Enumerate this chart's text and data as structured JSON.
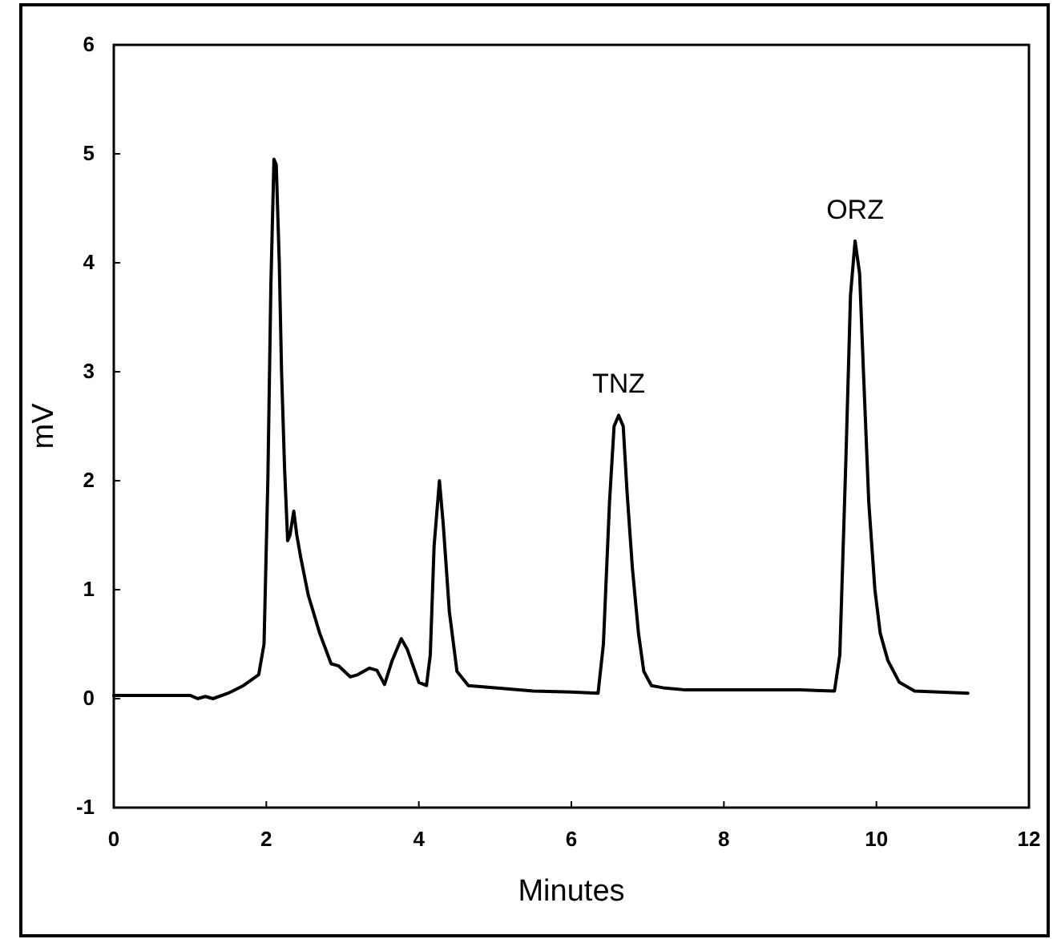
{
  "chart_data": {
    "type": "line",
    "xlabel": "Minutes",
    "ylabel": "mV",
    "xlim": [
      0,
      12
    ],
    "ylim": [
      -1,
      6
    ],
    "xticks": [
      0,
      2,
      4,
      6,
      8,
      10,
      12
    ],
    "yticks": [
      -1,
      0,
      1,
      2,
      3,
      4,
      5,
      6
    ],
    "grid": false,
    "marker": "none",
    "line_style": "solid",
    "annotations": [
      {
        "text": "TNZ",
        "x": 6.62,
        "y": 2.6
      },
      {
        "text": "ORZ",
        "x": 9.72,
        "y": 4.2
      }
    ],
    "series": [
      {
        "color": "#000000",
        "x": [
          0,
          0.5,
          1.0,
          1.1,
          1.2,
          1.3,
          1.5,
          1.7,
          1.9,
          1.97,
          2.02,
          2.06,
          2.1,
          2.13,
          2.17,
          2.2,
          2.24,
          2.28,
          2.31,
          2.36,
          2.4,
          2.45,
          2.55,
          2.7,
          2.85,
          2.95,
          3.1,
          3.2,
          3.35,
          3.45,
          3.55,
          3.65,
          3.77,
          3.85,
          4.0,
          4.1,
          4.15,
          4.2,
          4.27,
          4.32,
          4.4,
          4.5,
          4.65,
          5.0,
          5.5,
          6.0,
          6.35,
          6.42,
          6.5,
          6.56,
          6.62,
          6.68,
          6.73,
          6.8,
          6.88,
          6.95,
          7.05,
          7.2,
          7.5,
          8.0,
          8.5,
          9.0,
          9.45,
          9.52,
          9.6,
          9.66,
          9.72,
          9.78,
          9.83,
          9.9,
          9.98,
          10.05,
          10.15,
          10.3,
          10.5,
          11.2
        ],
        "values": [
          0.03,
          0.03,
          0.03,
          0.0,
          0.02,
          0.0,
          0.05,
          0.12,
          0.22,
          0.5,
          2.0,
          3.8,
          4.95,
          4.9,
          4.0,
          3.0,
          2.1,
          1.45,
          1.5,
          1.72,
          1.5,
          1.3,
          0.95,
          0.6,
          0.32,
          0.3,
          0.2,
          0.22,
          0.28,
          0.26,
          0.13,
          0.35,
          0.55,
          0.45,
          0.15,
          0.12,
          0.4,
          1.4,
          2.0,
          1.6,
          0.8,
          0.25,
          0.12,
          0.1,
          0.07,
          0.06,
          0.05,
          0.5,
          1.8,
          2.5,
          2.6,
          2.5,
          1.9,
          1.2,
          0.6,
          0.25,
          0.12,
          0.1,
          0.08,
          0.08,
          0.08,
          0.08,
          0.07,
          0.4,
          2.2,
          3.7,
          4.2,
          3.9,
          3.0,
          1.8,
          1.0,
          0.6,
          0.35,
          0.15,
          0.07,
          0.05
        ]
      }
    ]
  }
}
